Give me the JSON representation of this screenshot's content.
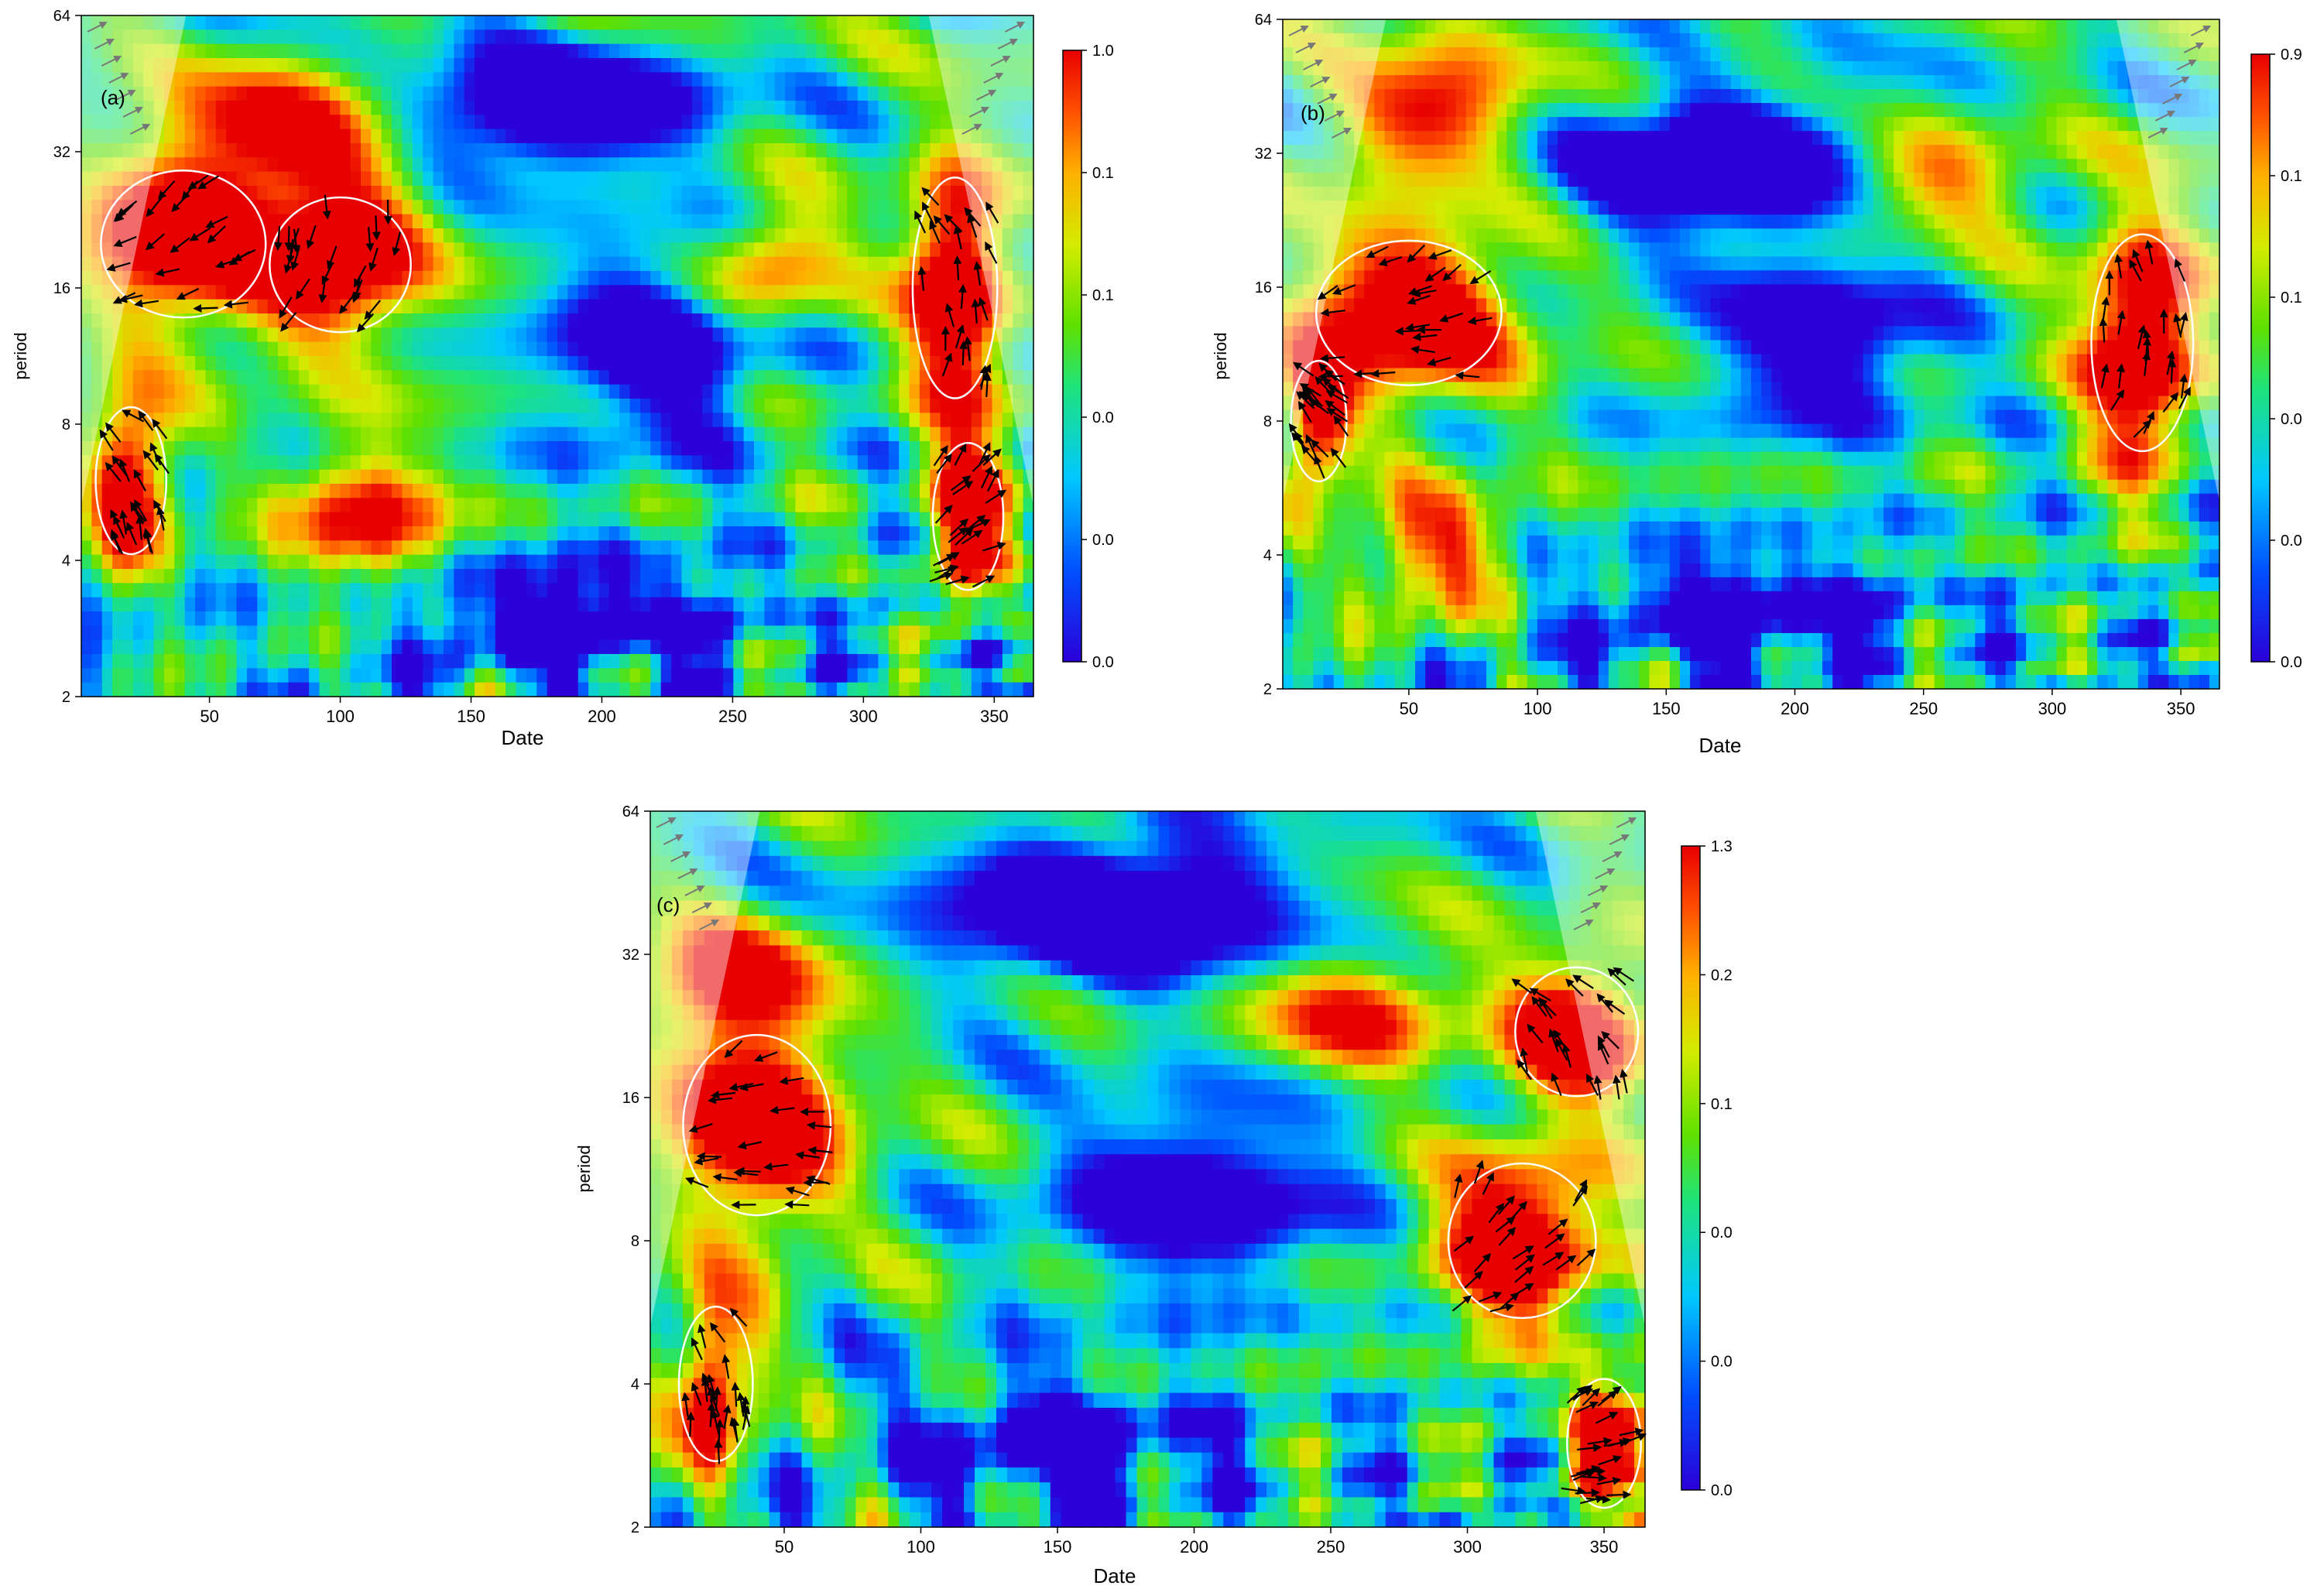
{
  "chart_data": [
    {
      "type": "heatmap",
      "panel_label": "(a)",
      "xlabel": "Date",
      "ylabel": "period",
      "x_ticks": [
        50,
        100,
        150,
        200,
        250,
        300,
        350
      ],
      "y_ticks": [
        2,
        4,
        8,
        16,
        32,
        64
      ],
      "xlim": [
        1,
        365
      ],
      "ylim": [
        2,
        64
      ],
      "y_scale": "log2",
      "colorbar_ticks": [
        "1.0",
        "0.1",
        "0.1",
        "0.0",
        "0.0",
        "0.0"
      ],
      "colormap": [
        "#2b00d9",
        "#0050ff",
        "#00c8ff",
        "#1fe37a",
        "#5ee000",
        "#d2ec00",
        "#ffb000",
        "#ff5000",
        "#e80000"
      ],
      "hotspots": [
        {
          "x": 40,
          "p": 20,
          "v": 0.95,
          "sx": 35,
          "sy": 0.6
        },
        {
          "x": 100,
          "p": 18,
          "v": 0.9,
          "sx": 30,
          "sy": 0.55
        },
        {
          "x": 80,
          "p": 35,
          "v": 0.7,
          "sx": 45,
          "sy": 0.5
        },
        {
          "x": 335,
          "p": 16,
          "v": 0.95,
          "sx": 18,
          "sy": 0.9
        },
        {
          "x": 265,
          "p": 18,
          "v": 0.6,
          "sx": 25,
          "sy": 0.4
        },
        {
          "x": 20,
          "p": 6,
          "v": 0.9,
          "sx": 15,
          "sy": 0.6
        },
        {
          "x": 110,
          "p": 5,
          "v": 0.7,
          "sx": 30,
          "sy": 0.5
        },
        {
          "x": 340,
          "p": 5,
          "v": 0.85,
          "sx": 15,
          "sy": 0.6
        }
      ],
      "coldspots": [
        {
          "x": 180,
          "p": 40,
          "v": 0.85,
          "sx": 55,
          "sy": 0.4
        },
        {
          "x": 220,
          "p": 12,
          "v": 0.6,
          "sx": 40,
          "sy": 0.7
        },
        {
          "x": 190,
          "p": 3,
          "v": 0.5,
          "sx": 60,
          "sy": 0.4
        }
      ]
    },
    {
      "type": "heatmap",
      "panel_label": "(b)",
      "xlabel": "Date",
      "ylabel": "period",
      "x_ticks": [
        50,
        100,
        150,
        200,
        250,
        300,
        350
      ],
      "y_ticks": [
        2,
        4,
        8,
        16,
        32,
        64
      ],
      "xlim": [
        1,
        365
      ],
      "ylim": [
        2,
        64
      ],
      "y_scale": "log2",
      "colorbar_ticks": [
        "0.9",
        "0.1",
        "0.1",
        "0.0",
        "0.0",
        "0.0"
      ],
      "colormap": [
        "#2b00d9",
        "#0050ff",
        "#00c8ff",
        "#1fe37a",
        "#5ee000",
        "#d2ec00",
        "#ffb000",
        "#ff5000",
        "#e80000"
      ],
      "hotspots": [
        {
          "x": 50,
          "p": 14,
          "v": 0.95,
          "sx": 40,
          "sy": 0.6
        },
        {
          "x": 60,
          "p": 40,
          "v": 0.7,
          "sx": 35,
          "sy": 0.5
        },
        {
          "x": 335,
          "p": 12,
          "v": 0.95,
          "sx": 22,
          "sy": 0.9
        },
        {
          "x": 15,
          "p": 8,
          "v": 0.85,
          "sx": 12,
          "sy": 0.5
        },
        {
          "x": 250,
          "p": 28,
          "v": 0.55,
          "sx": 40,
          "sy": 0.4
        },
        {
          "x": 60,
          "p": 4,
          "v": 0.6,
          "sx": 30,
          "sy": 0.5
        }
      ],
      "coldspots": [
        {
          "x": 175,
          "p": 30,
          "v": 0.8,
          "sx": 60,
          "sy": 0.5
        },
        {
          "x": 210,
          "p": 12,
          "v": 0.6,
          "sx": 40,
          "sy": 0.6
        },
        {
          "x": 180,
          "p": 3,
          "v": 0.5,
          "sx": 60,
          "sy": 0.4
        }
      ]
    },
    {
      "type": "heatmap",
      "panel_label": "(c)",
      "xlabel": "Date",
      "ylabel": "period",
      "x_ticks": [
        50,
        100,
        150,
        200,
        250,
        300,
        350
      ],
      "y_ticks": [
        2,
        4,
        8,
        16,
        32,
        64
      ],
      "xlim": [
        1,
        365
      ],
      "ylim": [
        2,
        64
      ],
      "y_scale": "log2",
      "colorbar_ticks": [
        "1.3",
        "0.2",
        "0.1",
        "0.0",
        "0.0",
        "0.0"
      ],
      "colormap": [
        "#2b00d9",
        "#0050ff",
        "#00c8ff",
        "#1fe37a",
        "#5ee000",
        "#d2ec00",
        "#ffb000",
        "#ff5000",
        "#e80000"
      ],
      "hotspots": [
        {
          "x": 40,
          "p": 14,
          "v": 0.95,
          "sx": 30,
          "sy": 0.7
        },
        {
          "x": 30,
          "p": 28,
          "v": 0.7,
          "sx": 30,
          "sy": 0.4
        },
        {
          "x": 320,
          "p": 8,
          "v": 0.95,
          "sx": 30,
          "sy": 0.6
        },
        {
          "x": 340,
          "p": 22,
          "v": 0.85,
          "sx": 25,
          "sy": 0.5
        },
        {
          "x": 260,
          "p": 24,
          "v": 0.6,
          "sx": 35,
          "sy": 0.4
        },
        {
          "x": 25,
          "p": 4,
          "v": 0.85,
          "sx": 15,
          "sy": 0.6
        },
        {
          "x": 350,
          "p": 3,
          "v": 0.8,
          "sx": 15,
          "sy": 0.5
        }
      ],
      "coldspots": [
        {
          "x": 170,
          "p": 40,
          "v": 0.85,
          "sx": 60,
          "sy": 0.5
        },
        {
          "x": 200,
          "p": 10,
          "v": 0.6,
          "sx": 50,
          "sy": 0.6
        },
        {
          "x": 150,
          "p": 3,
          "v": 0.5,
          "sx": 50,
          "sy": 0.4
        }
      ]
    }
  ]
}
